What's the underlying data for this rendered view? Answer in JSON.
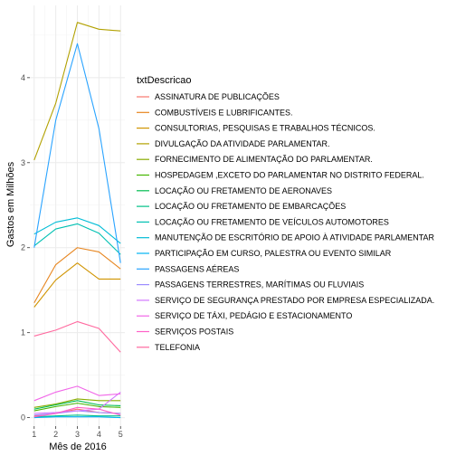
{
  "chart_data": {
    "type": "line",
    "title": "",
    "xlabel": "Mês de 2016",
    "ylabel": "Gastos em Milhões",
    "x": [
      1,
      2,
      3,
      4,
      5
    ],
    "xlim": [
      0.8,
      5.2
    ],
    "ylim": [
      -0.1,
      4.85
    ],
    "x_ticks": [
      1,
      2,
      3,
      4,
      5
    ],
    "y_ticks": [
      0,
      1,
      2,
      3,
      4
    ],
    "grid": true,
    "legend": {
      "title": "txtDescricao",
      "position": "right"
    },
    "series": [
      {
        "name": "ASSINATURA DE PUBLICAÇÕES",
        "color": "#F8766D",
        "values": [
          0.02,
          0.05,
          0.1,
          0.06,
          0.05
        ]
      },
      {
        "name": "COMBUSTÍVEIS E LUBRIFICANTES.",
        "color": "#E7851E",
        "values": [
          1.35,
          1.8,
          2.0,
          1.95,
          1.75
        ]
      },
      {
        "name": "CONSULTORIAS, PESQUISAS E TRABALHOS TÉCNICOS.",
        "color": "#D09400",
        "values": [
          1.3,
          1.62,
          1.82,
          1.63,
          1.63
        ]
      },
      {
        "name": "DIVULGAÇÃO DA ATIVIDADE PARLAMENTAR.",
        "color": "#B2A100",
        "values": [
          3.03,
          3.7,
          4.65,
          4.57,
          4.55
        ]
      },
      {
        "name": "FORNECIMENTO DE ALIMENTAÇÃO DO PARLAMENTAR.",
        "color": "#89AC00",
        "values": [
          0.12,
          0.16,
          0.22,
          0.2,
          0.2
        ]
      },
      {
        "name": "HOSPEDAGEM ,EXCETO DO PARLAMENTAR NO DISTRITO FEDERAL.",
        "color": "#45B500",
        "values": [
          0.08,
          0.13,
          0.17,
          0.13,
          0.12
        ]
      },
      {
        "name": "LOCAÇÃO OU FRETAMENTO DE AERONAVES",
        "color": "#00BC51",
        "values": [
          0.1,
          0.15,
          0.2,
          0.15,
          0.14
        ]
      },
      {
        "name": "LOCAÇÃO OU FRETAMENTO DE EMBARCAÇÕES",
        "color": "#00C087",
        "values": [
          0.01,
          0.02,
          0.03,
          0.02,
          0.02
        ]
      },
      {
        "name": "LOCAÇÃO OU FRETAMENTO DE VEÍCULOS AUTOMOTORES",
        "color": "#00C0B2",
        "values": [
          2.02,
          2.22,
          2.28,
          2.17,
          1.92
        ]
      },
      {
        "name": "MANUTENÇÃO DE ESCRITÓRIO DE APOIO À ATIVIDADE PARLAMENTAR",
        "color": "#00BCD6",
        "values": [
          2.16,
          2.3,
          2.35,
          2.26,
          2.05
        ]
      },
      {
        "name": "PARTICIPAÇÃO EM CURSO, PALESTRA OU EVENTO SIMILAR",
        "color": "#00B3F2",
        "values": [
          0.0,
          0.01,
          0.01,
          0.01,
          0.0
        ]
      },
      {
        "name": "PASSAGENS AÉREAS",
        "color": "#29A3FF",
        "values": [
          2.0,
          3.5,
          4.4,
          3.4,
          1.82
        ]
      },
      {
        "name": "PASSAGENS TERRESTRES, MARÍTIMAS OU FLUVIAIS",
        "color": "#9C8DFF",
        "values": [
          0.03,
          0.05,
          0.08,
          0.06,
          0.05
        ]
      },
      {
        "name": "SERVIÇO DE SEGURANÇA PRESTADO POR EMPRESA ESPECIALIZADA.",
        "color": "#D277FF",
        "values": [
          0.05,
          0.06,
          0.08,
          0.1,
          0.3
        ]
      },
      {
        "name": "SERVIÇO DE TÁXI, PEDÁGIO E ESTACIONAMENTO",
        "color": "#F166E8",
        "values": [
          0.2,
          0.3,
          0.37,
          0.26,
          0.28
        ]
      },
      {
        "name": "SERVIÇOS POSTAIS",
        "color": "#FF61C7",
        "values": [
          0.01,
          0.05,
          0.12,
          0.1,
          0.03
        ]
      },
      {
        "name": "TELEFONIA",
        "color": "#FF689E",
        "values": [
          0.96,
          1.03,
          1.13,
          1.05,
          0.77
        ]
      }
    ]
  }
}
